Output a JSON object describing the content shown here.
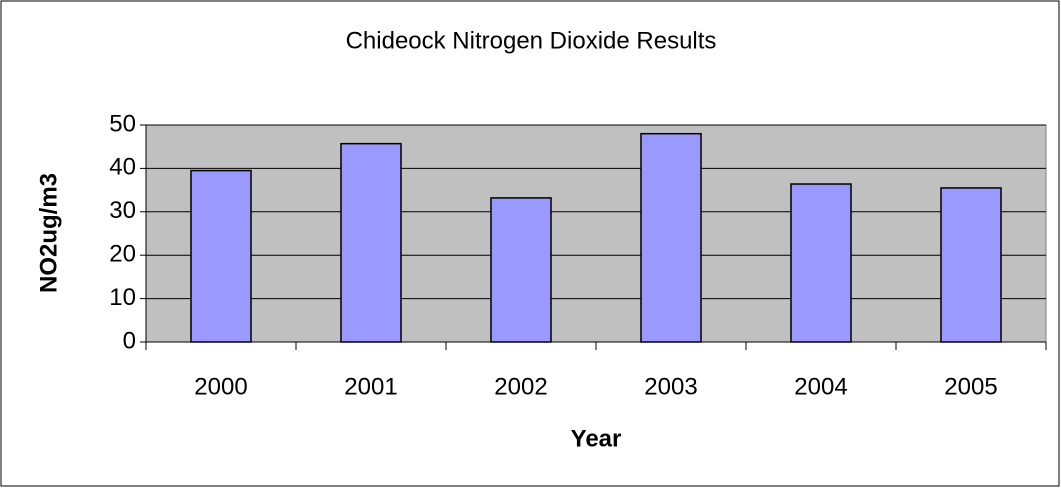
{
  "chart_data": {
    "type": "bar",
    "title": "Chideock Nitrogen Dioxide Results",
    "x_label": "Year",
    "y_label": "NO2ug/m3",
    "categories": [
      "2000",
      "2001",
      "2002",
      "2003",
      "2004",
      "2005"
    ],
    "values": [
      39.5,
      45.7,
      33.2,
      48,
      36.4,
      35.5
    ],
    "color": "#9999ff",
    "ylim": [
      0,
      50
    ],
    "yticks": [
      0,
      10,
      20,
      30,
      40,
      50
    ],
    "grid": true
  }
}
